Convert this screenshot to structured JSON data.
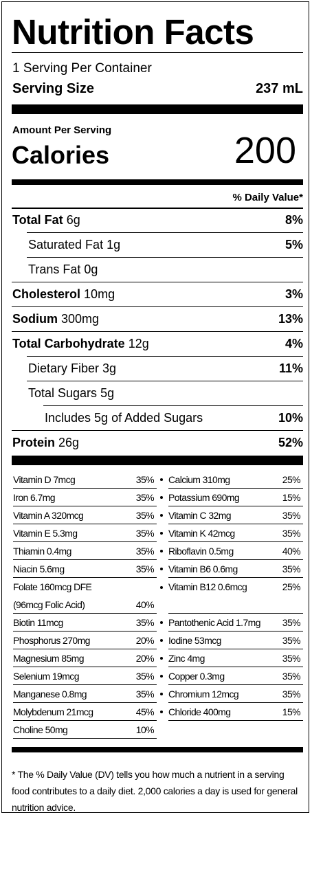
{
  "title": "Nutrition Facts",
  "servings_per_container": "1 Serving Per Container",
  "serving_size_label": "Serving Size",
  "serving_size_value": "237 mL",
  "amount_per_serving": "Amount Per Serving",
  "calories_label": "Calories",
  "calories_value": "200",
  "daily_value_header": "% Daily Value*",
  "nutrients": [
    {
      "name": "Total Fat",
      "amount": "6g",
      "dv": "8%"
    },
    {
      "name": "Saturated Fat",
      "amount": "1g",
      "dv": "5%"
    },
    {
      "name": "Trans Fat",
      "amount": "0g",
      "dv": ""
    },
    {
      "name": "Cholesterol",
      "amount": "10mg",
      "dv": "3%"
    },
    {
      "name": "Sodium",
      "amount": "300mg",
      "dv": "13%"
    },
    {
      "name": "Total Carbohydrate",
      "amount": "12g",
      "dv": "4%"
    },
    {
      "name": "Dietary Fiber",
      "amount": "3g",
      "dv": "11%"
    },
    {
      "name": "Total Sugars",
      "amount": "5g",
      "dv": ""
    },
    {
      "name": "Includes 5g of Added Sugars",
      "amount": "",
      "dv": "10%"
    },
    {
      "name": "Protein",
      "amount": "26g",
      "dv": "52%"
    }
  ],
  "vitamins_left": [
    {
      "name": "Vitamin D 7mcg",
      "dv": "35%"
    },
    {
      "name": "Iron 6.7mg",
      "dv": "35%"
    },
    {
      "name": "Vitamin A 320mcg",
      "dv": "35%"
    },
    {
      "name": "Vitamin E 5.3mg",
      "dv": "35%"
    },
    {
      "name": "Thiamin 0.4mg",
      "dv": "35%"
    },
    {
      "name": "Niacin 5.6mg",
      "dv": "35%"
    },
    {
      "name": "Folate 160mcg DFE",
      "name2": "(96mcg Folic Acid)",
      "dv": "40%"
    },
    {
      "name": "Biotin 11mcg",
      "dv": "35%"
    },
    {
      "name": "Phosphorus 270mg",
      "dv": "20%"
    },
    {
      "name": "Magnesium 85mg",
      "dv": "20%"
    },
    {
      "name": "Selenium 19mcg",
      "dv": "35%"
    },
    {
      "name": "Manganese 0.8mg",
      "dv": "35%"
    },
    {
      "name": "Molybdenum 21mcg",
      "dv": "45%"
    },
    {
      "name": "Choline 50mg",
      "dv": "10%"
    }
  ],
  "vitamins_right": [
    {
      "name": "Calcium 310mg",
      "dv": "25%"
    },
    {
      "name": "Potassium 690mg",
      "dv": "15%"
    },
    {
      "name": "Vitamin C 32mg",
      "dv": "35%"
    },
    {
      "name": "Vitamin K 42mcg",
      "dv": "35%"
    },
    {
      "name": "Riboflavin 0.5mg",
      "dv": "40%"
    },
    {
      "name": "Vitamin B6 0.6mg",
      "dv": "35%"
    },
    {
      "name": "Vitamin B12 0.6mcg",
      "dv": "25%"
    },
    {
      "name": "Pantothenic Acid 1.7mg",
      "dv": "35%"
    },
    {
      "name": "Iodine 53mcg",
      "dv": "35%"
    },
    {
      "name": "Zinc 4mg",
      "dv": "35%"
    },
    {
      "name": "Copper 0.3mg",
      "dv": "35%"
    },
    {
      "name": "Chromium 12mcg",
      "dv": "35%"
    },
    {
      "name": "Chloride 400mg",
      "dv": "15%"
    }
  ],
  "footnote": "* The % Daily Value (DV) tells you how much a nutrient in a serving food contributes to a daily diet. 2,000 calories a day is used for general nutrition advice."
}
